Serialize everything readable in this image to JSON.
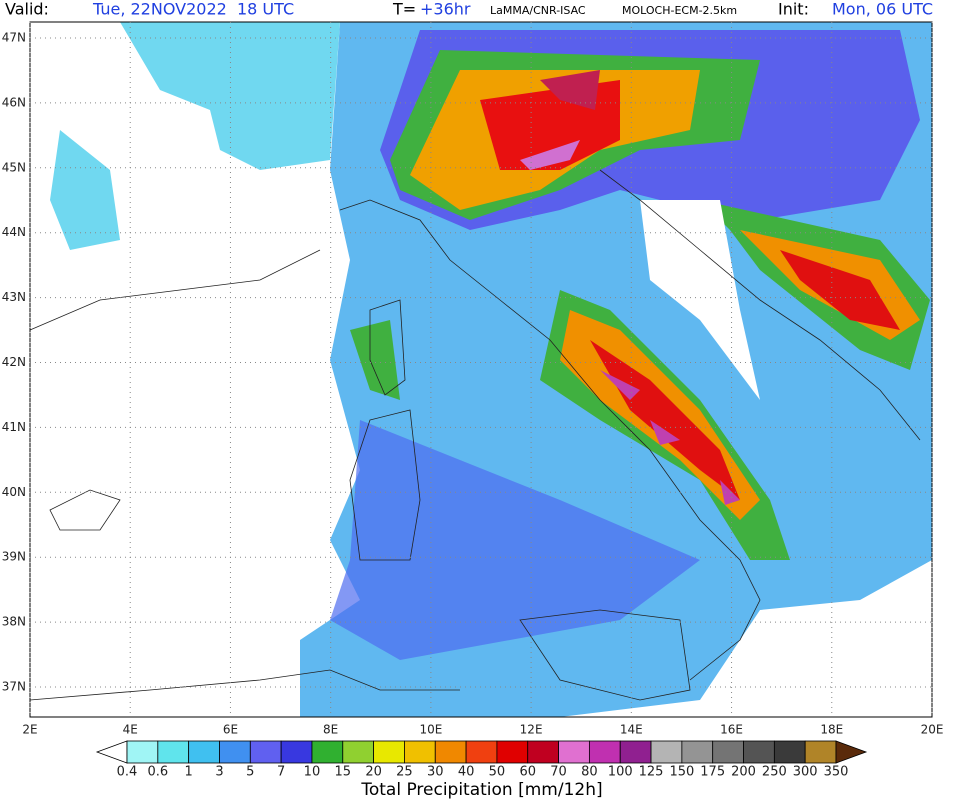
{
  "header": {
    "valid_label": "Valid:",
    "valid_time": "Tue, 22NOV2022  18 UTC",
    "lead_label": "T=",
    "lead": "+36hr",
    "source": "LaMMA/CNR-ISAC",
    "model": "MOLOCH-ECM-2.5km",
    "init_label": "Init:",
    "init_time": "Mon, 06 UTC"
  },
  "map": {
    "lat_labels": [
      "47N",
      "46N",
      "45N",
      "44N",
      "43N",
      "42N",
      "41N",
      "40N",
      "39N",
      "38N",
      "37N"
    ],
    "lon_labels": [
      "2E",
      "4E",
      "6E",
      "8E",
      "10E",
      "12E",
      "14E",
      "16E",
      "18E",
      "20E"
    ]
  },
  "colorbar": {
    "title": "Total Precipitation [mm/12h]",
    "levels": [
      "0.4",
      "0.6",
      "1",
      "3",
      "5",
      "7",
      "10",
      "15",
      "20",
      "25",
      "30",
      "40",
      "50",
      "60",
      "70",
      "80",
      "100",
      "125",
      "150",
      "175",
      "200",
      "250",
      "300",
      "350"
    ],
    "under_color": "#ffffff",
    "over_color": "#5a2a0a",
    "colors": [
      "#a0f5f5",
      "#60e4ec",
      "#40c0f0",
      "#4090f0",
      "#6060f0",
      "#3838e0",
      "#30b030",
      "#90d030",
      "#e8e800",
      "#f0c000",
      "#f08800",
      "#f04010",
      "#e00000",
      "#c00020",
      "#e070d0",
      "#c030b0",
      "#902090",
      "#b4b4b4",
      "#949494",
      "#747474",
      "#545454",
      "#3a3a3a",
      "#b08428",
      "#8a5a14"
    ]
  }
}
